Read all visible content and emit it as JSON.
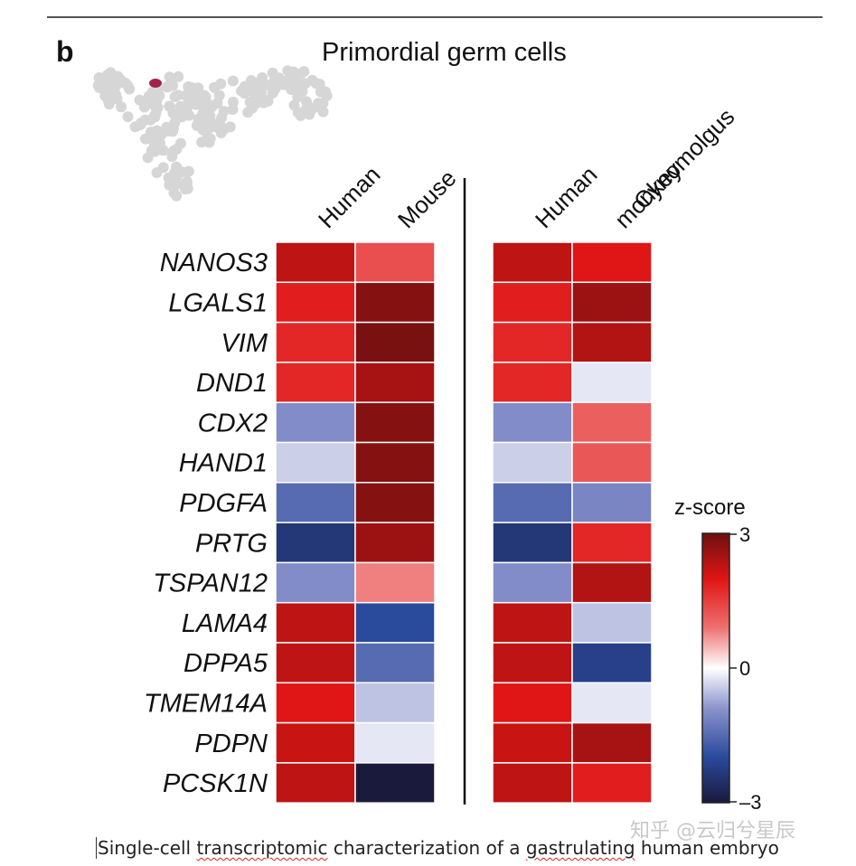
{
  "panel_label": "b",
  "caption": {
    "parts": [
      "Single-cell ",
      "transcriptomic",
      " characterization of a ",
      "gastrulating",
      " human embryo"
    ]
  },
  "watermark": "知乎 @云归兮星辰",
  "legend": {
    "title": "z-score",
    "ticks": [
      "3",
      "0",
      "–3"
    ],
    "range": [
      -3,
      3
    ]
  },
  "umap_highlight_color": "#a3224a",
  "chart_data": {
    "type": "heatmap",
    "title": "Primordial germ cells",
    "genes": [
      "NANOS3",
      "LGALS1",
      "VIM",
      "DND1",
      "CDX2",
      "HAND1",
      "PDGFA",
      "PRTG",
      "TSPAN12",
      "LAMA4",
      "DPPA5",
      "TMEM14A",
      "PDPN",
      "PCSK1N"
    ],
    "panels": [
      {
        "columns": [
          "Human",
          "Mouse"
        ],
        "values": [
          [
            2.3,
            1.3
          ],
          [
            1.9,
            2.8
          ],
          [
            1.8,
            2.9
          ],
          [
            1.8,
            2.5
          ],
          [
            -1.0,
            2.8
          ],
          [
            -0.4,
            2.8
          ],
          [
            -1.5,
            2.8
          ],
          [
            -2.4,
            2.6
          ],
          [
            -1.0,
            0.8
          ],
          [
            2.3,
            -2.0
          ],
          [
            2.3,
            -1.5
          ],
          [
            2.0,
            -0.5
          ],
          [
            2.2,
            -0.2
          ],
          [
            2.3,
            -3.0
          ]
        ]
      },
      {
        "columns": [
          "Human",
          "Cynomolgus monkey"
        ],
        "column_lines": [
          [
            "Human"
          ],
          [
            "Cynomolgus",
            "monkey"
          ]
        ],
        "values": [
          [
            2.3,
            2.0
          ],
          [
            1.9,
            2.6
          ],
          [
            1.8,
            2.4
          ],
          [
            1.8,
            -0.2
          ],
          [
            -1.0,
            1.1
          ],
          [
            -0.4,
            1.2
          ],
          [
            -1.5,
            -1.1
          ],
          [
            -2.4,
            1.8
          ],
          [
            -1.0,
            2.4
          ],
          [
            2.3,
            -0.5
          ],
          [
            2.3,
            -2.2
          ],
          [
            2.0,
            -0.2
          ],
          [
            2.2,
            2.5
          ],
          [
            2.3,
            1.9
          ]
        ]
      }
    ]
  }
}
